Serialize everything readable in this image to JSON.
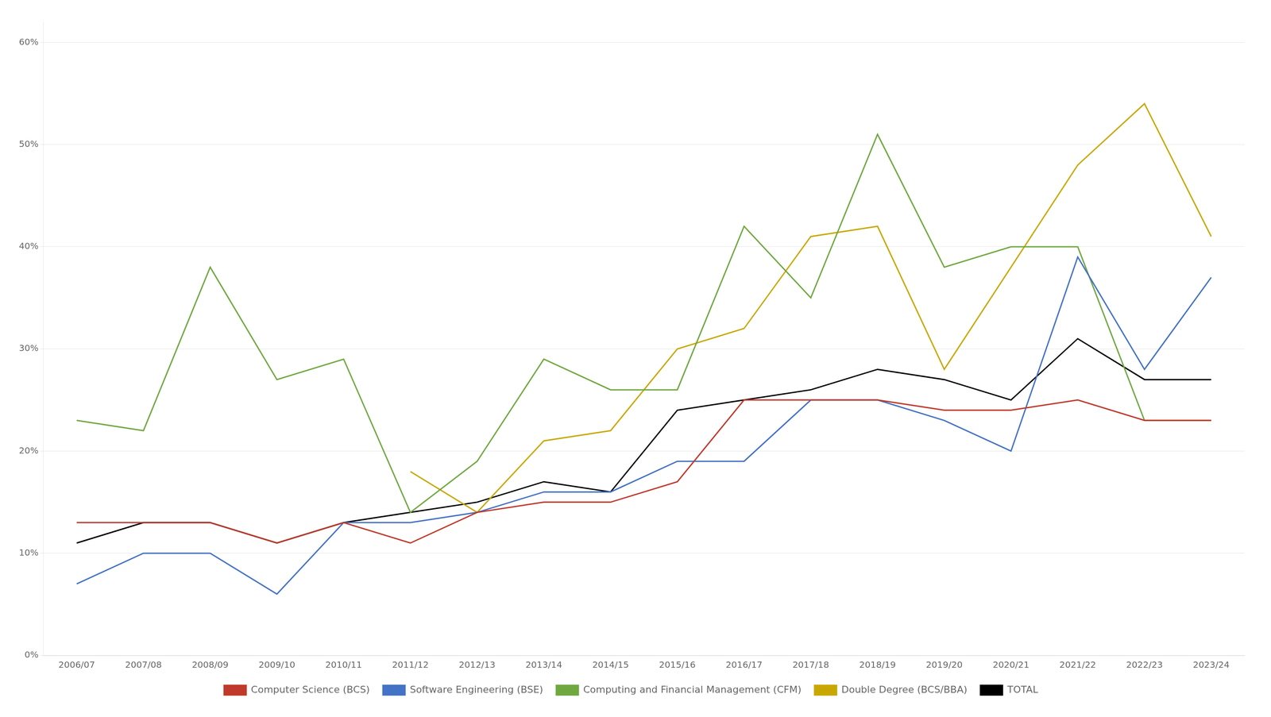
{
  "chart_data": {
    "type": "line",
    "categories": [
      "2006/07",
      "2007/08",
      "2008/09",
      "2009/10",
      "2010/11",
      "2011/12",
      "2012/13",
      "2013/14",
      "2014/15",
      "2015/16",
      "2016/17",
      "2017/18",
      "2018/19",
      "2019/20",
      "2020/21",
      "2021/22",
      "2022/23",
      "2023/24"
    ],
    "series": [
      {
        "name": "Computer Science (BCS)",
        "color": "#c0392b",
        "values": [
          0.13,
          0.13,
          0.13,
          0.11,
          0.13,
          0.11,
          0.14,
          0.15,
          0.15,
          0.17,
          0.25,
          0.25,
          0.25,
          0.24,
          0.24,
          0.25,
          0.23,
          0.23
        ]
      },
      {
        "name": "Software Engineering (BSE)",
        "color": "#4472c4",
        "values": [
          0.07,
          0.1,
          0.1,
          0.06,
          0.13,
          0.13,
          0.14,
          0.16,
          0.16,
          0.19,
          0.19,
          0.25,
          0.25,
          0.23,
          0.2,
          0.39,
          0.28,
          0.37
        ]
      },
      {
        "name": "Computing and Financial Management (CFM)",
        "color": "#70a840",
        "values": [
          0.23,
          0.22,
          0.38,
          0.27,
          0.29,
          0.14,
          0.19,
          0.29,
          0.26,
          0.26,
          0.42,
          0.35,
          0.51,
          0.38,
          0.4,
          0.4,
          0.23,
          0.23
        ]
      },
      {
        "name": "Double Degree (BCS/BBA)",
        "color": "#c8a800",
        "values": [
          null,
          null,
          null,
          null,
          null,
          0.18,
          0.14,
          0.21,
          0.22,
          0.3,
          0.32,
          0.41,
          0.42,
          0.28,
          0.38,
          0.48,
          0.54,
          0.41
        ]
      },
      {
        "name": "TOTAL",
        "color": "#000000",
        "values": [
          0.11,
          0.13,
          0.13,
          0.11,
          0.13,
          0.14,
          0.15,
          0.17,
          0.16,
          0.24,
          0.25,
          0.26,
          0.28,
          0.27,
          0.25,
          0.31,
          0.27,
          0.27
        ]
      }
    ],
    "ylim": [
      0.0,
      0.62
    ],
    "yticks": [
      {
        "value": 0.0,
        "label": "0%"
      },
      {
        "value": 0.1,
        "label": "10%"
      },
      {
        "value": 0.2,
        "label": "20%"
      },
      {
        "value": 0.3,
        "label": "30%"
      },
      {
        "value": 0.4,
        "label": "40%"
      },
      {
        "value": 0.5,
        "label": "50%"
      },
      {
        "value": 0.6,
        "label": "60%"
      }
    ],
    "grid": "y",
    "legend": "bottom",
    "marker": "none"
  }
}
